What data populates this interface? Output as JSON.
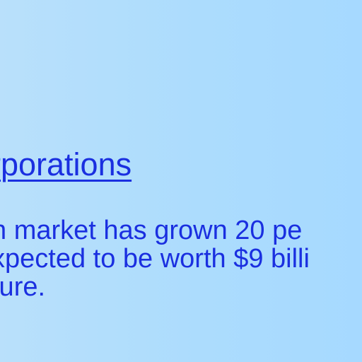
{
  "header": {
    "heading": ""
  },
  "section": {
    "link_label": "rporations"
  },
  "article": {
    "lines": [
      "n market has grown 20 pe",
      "xpected to be worth $9 billi",
      "ture."
    ]
  },
  "colors": {
    "background": "#acdcfd",
    "link": "#1a2fe0",
    "text": "#1a2fe0",
    "heading": "#ffffff"
  }
}
